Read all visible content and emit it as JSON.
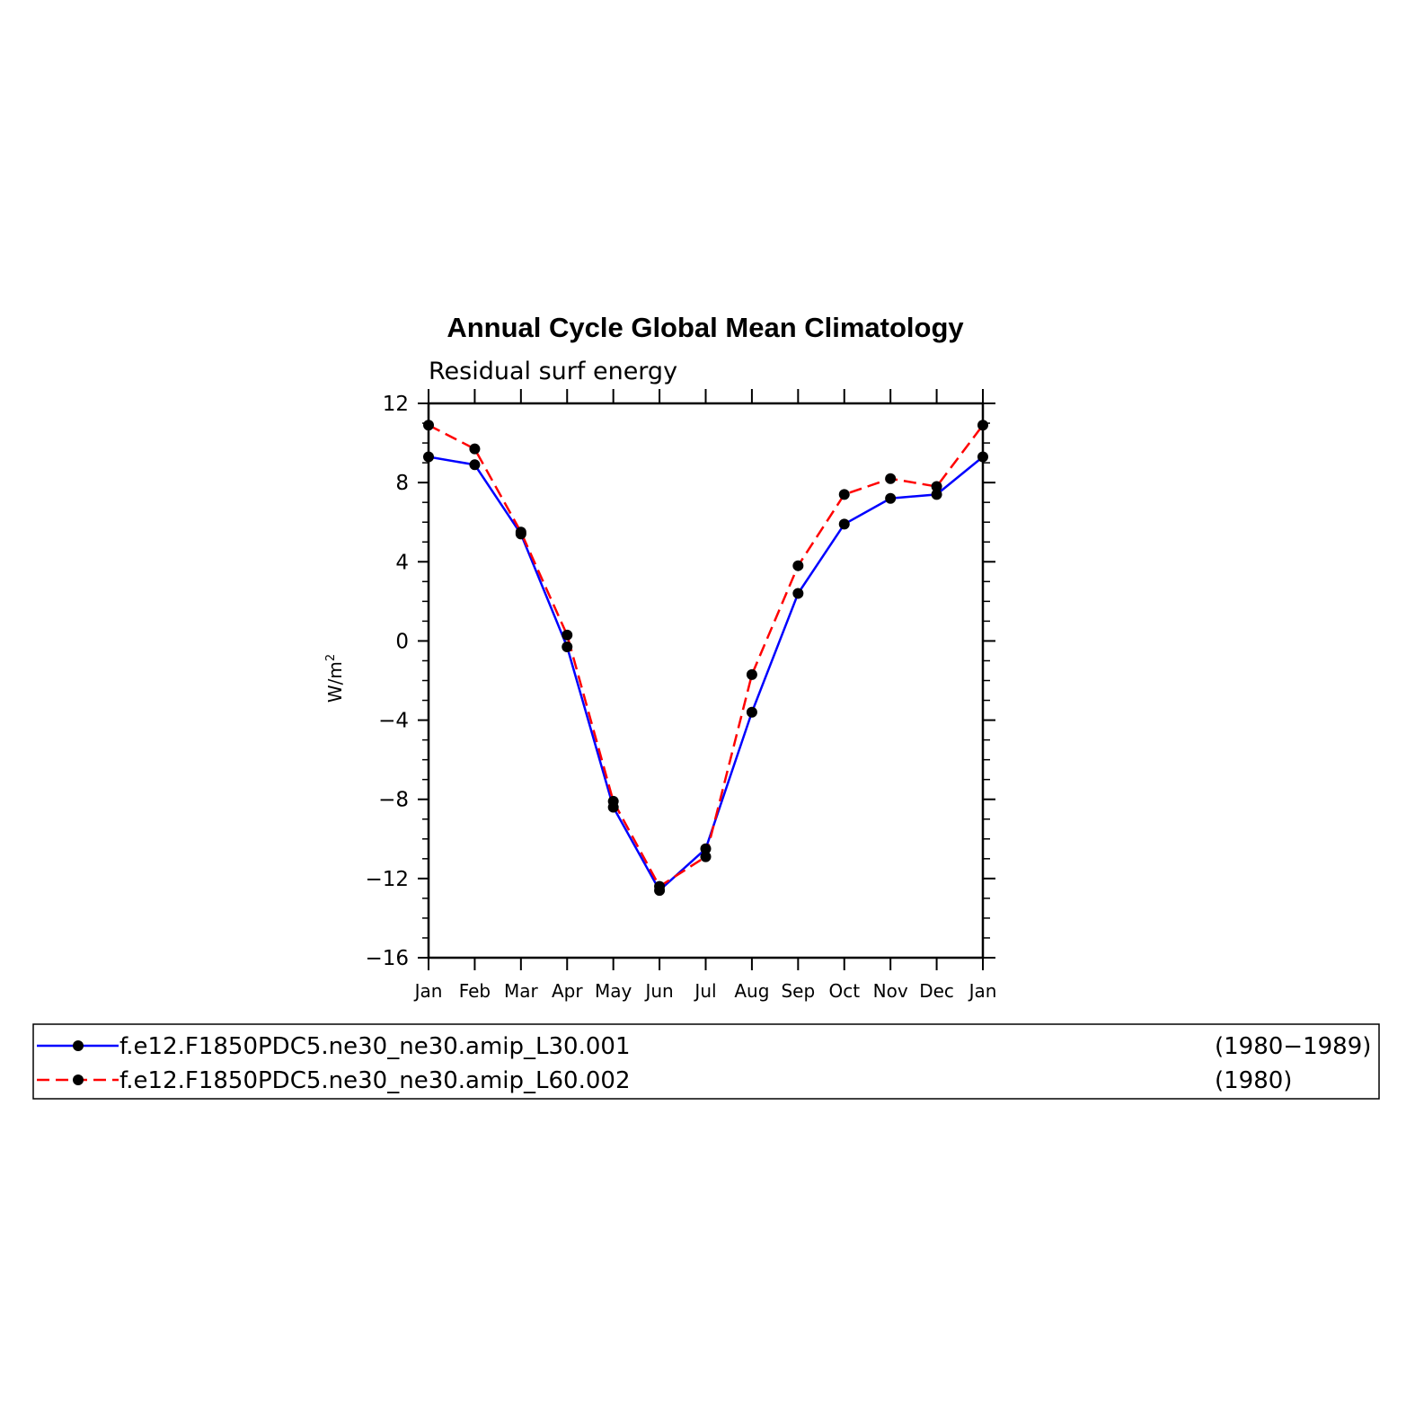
{
  "chart_data": {
    "type": "line",
    "title": "Annual Cycle Global Mean Climatology",
    "subtitle": "Residual surf energy",
    "ylabel": "W/m",
    "ylabel_superscript": "2",
    "ylim": [
      -16,
      12
    ],
    "yticks": [
      12,
      8,
      4,
      0,
      -4,
      -8,
      -12,
      -16
    ],
    "ytick_labels": [
      "12",
      "8",
      "4",
      "0",
      "−4",
      "−8",
      "−12",
      "−16"
    ],
    "categories": [
      "Jan",
      "Feb",
      "Mar",
      "Apr",
      "May",
      "Jun",
      "Jul",
      "Aug",
      "Sep",
      "Oct",
      "Nov",
      "Dec",
      "Jan"
    ],
    "grid": false,
    "legend_position": "bottom",
    "series": [
      {
        "name": "f.e12.F1850PDC5.ne30_ne30.amip_L30.001",
        "period": "(1980−1989)",
        "color": "#0000ff",
        "style": "solid",
        "values": [
          9.3,
          8.9,
          5.4,
          -0.3,
          -8.4,
          -12.6,
          -10.5,
          -3.6,
          2.4,
          5.9,
          7.2,
          7.4,
          9.3
        ]
      },
      {
        "name": "f.e12.F1850PDC5.ne30_ne30.amip_L60.002",
        "period": "(1980)",
        "color": "#ff0000",
        "style": "dashed",
        "values": [
          10.9,
          9.7,
          5.5,
          0.3,
          -8.1,
          -12.4,
          -10.9,
          -1.7,
          3.8,
          7.4,
          8.2,
          7.8,
          10.9
        ]
      }
    ]
  }
}
